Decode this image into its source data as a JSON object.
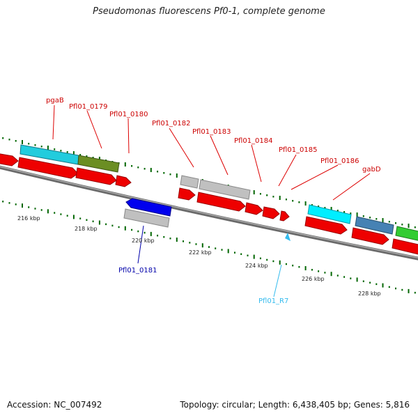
{
  "title": "Pseudomonas fluorescens Pf0-1, complete genome",
  "footer": {
    "accession": "Accession: NC_007492",
    "stats": "Topology: circular; Length: 6,438,405 bp; Genes: 5,816"
  },
  "scale_labels": [
    "216 kbp",
    "218 kbp",
    "220 kbp",
    "222 kbp",
    "224 kbp",
    "226 kbp",
    "228 kbp"
  ],
  "gene_labels": [
    {
      "text": "pgaB",
      "color": "#cc0000"
    },
    {
      "text": "Pfl01_0179",
      "color": "#cc0000"
    },
    {
      "text": "Pfl01_0180",
      "color": "#cc0000"
    },
    {
      "text": "Pfl01_0182",
      "color": "#cc0000"
    },
    {
      "text": "Pfl01_0183",
      "color": "#cc0000"
    },
    {
      "text": "Pfl01_0184",
      "color": "#cc0000"
    },
    {
      "text": "Pfl01_0185",
      "color": "#cc0000"
    },
    {
      "text": "Pfl01_0186",
      "color": "#cc0000"
    },
    {
      "text": "gabD",
      "color": "#cc0000"
    },
    {
      "text": "Pfl01_0181",
      "color": "#0000aa"
    },
    {
      "text": "Pfl01_R7",
      "color": "#33bbee"
    }
  ],
  "colors": {
    "cds_forward": "#ee0000",
    "backbone": "#808080",
    "tick": "#006600",
    "gene_cyan": "#22ccdd",
    "gene_olive": "#6b8e23",
    "gene_gray": "#b8b8b8",
    "gene_blue": "#0000ee",
    "gene_steel": "#4682b4",
    "gene_green": "#33cc33",
    "gene_aqua": "#00eeff"
  }
}
